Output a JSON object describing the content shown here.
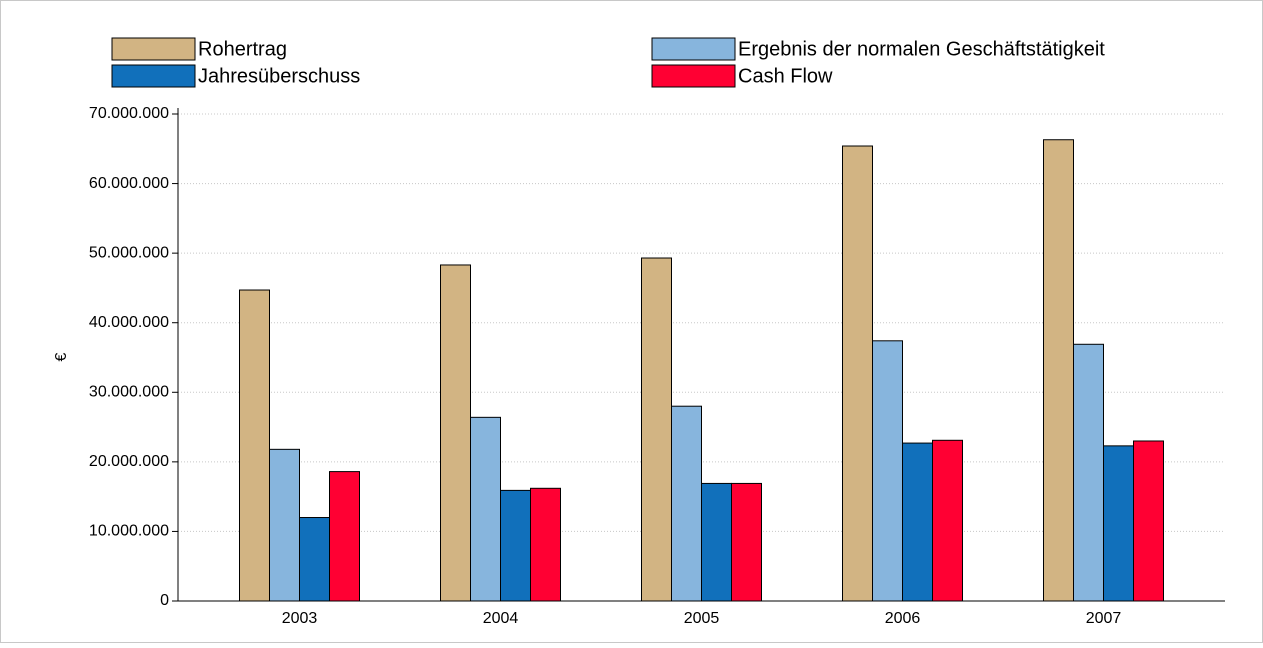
{
  "chart_data": {
    "type": "bar",
    "ylabel": "€",
    "categories": [
      "2003",
      "2004",
      "2005",
      "2006",
      "2007"
    ],
    "series": [
      {
        "name": "Rohertrag",
        "color": "#d2b483",
        "values": [
          44700000,
          48300000,
          49300000,
          65400000,
          66300000
        ]
      },
      {
        "name": "Ergebnis der normalen Geschäftstätigkeit",
        "color": "#87b5dd",
        "values": [
          21800000,
          26400000,
          28000000,
          37400000,
          36900000
        ]
      },
      {
        "name": "Jahresüberschuss",
        "color": "#1170bb",
        "values": [
          12000000,
          15900000,
          16900000,
          22700000,
          22300000
        ]
      },
      {
        "name": "Cash Flow",
        "color": "#ff0033",
        "values": [
          18600000,
          16200000,
          16900000,
          23100000,
          23000000
        ]
      }
    ],
    "ylim": [
      0,
      70000000
    ],
    "yticks": [
      0,
      {
        "value": 10000000,
        "label": "10.000.000"
      },
      {
        "value": 20000000,
        "label": "20.000.000"
      },
      {
        "value": 30000000,
        "label": "30.000.000"
      },
      {
        "value": 40000000,
        "label": "40.000.000"
      },
      {
        "value": 50000000,
        "label": "50.000.000"
      },
      {
        "value": 60000000,
        "label": "60.000.000"
      },
      {
        "value": 70000000,
        "label": "70.000.000"
      }
    ],
    "grid": true,
    "legend": "top"
  }
}
